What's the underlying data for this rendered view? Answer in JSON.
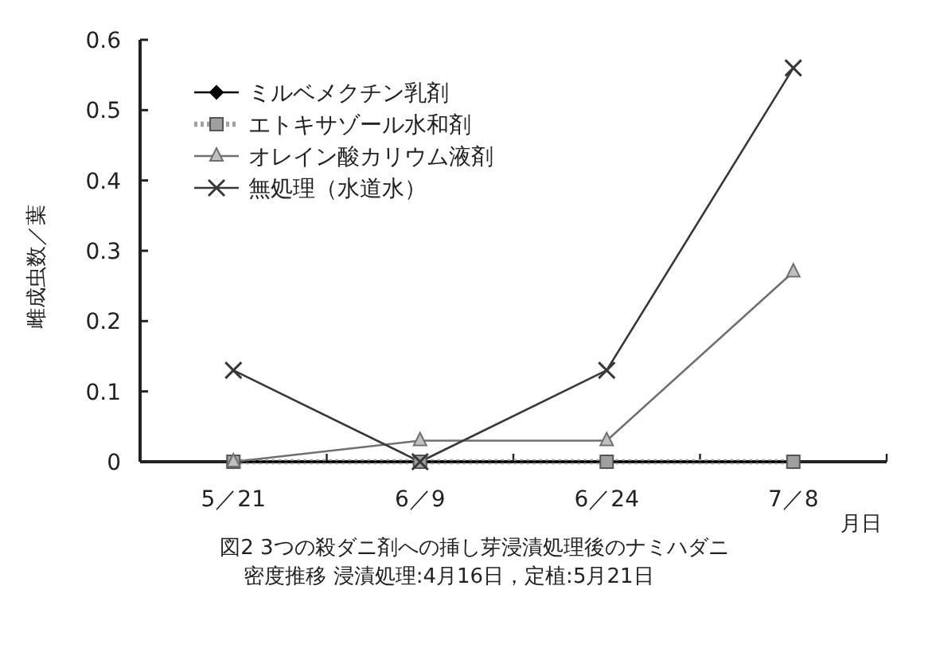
{
  "chart_data": {
    "type": "line",
    "title": "図2 3つの殺ダニ剤への挿し芽浸漬処理後のナミハダニ",
    "subtitle": "密度推移 浸漬処理:4月16日，定植:5月21日",
    "xlabel": "月日",
    "ylabel": "雌成虫数／葉",
    "categories": [
      "5／21",
      "6／9",
      "6／24",
      "7／8"
    ],
    "series": [
      {
        "name": "ミルベメクチン乳剤",
        "color": "#000000",
        "values": [
          0,
          0,
          0,
          0
        ],
        "marker": "diamond",
        "line_style": "solid"
      },
      {
        "name": "エトキサゾール水和剤",
        "color": "#a0a0a0",
        "values": [
          0,
          0,
          0,
          0
        ],
        "marker": "square",
        "line_style": "dotted"
      },
      {
        "name": "オレイン酸カリウム液剤",
        "color": "#707070",
        "values": [
          0,
          0.03,
          0.03,
          0.27
        ],
        "marker": "triangle",
        "line_style": "solid"
      },
      {
        "name": "無処理（水道水）",
        "color": "#383838",
        "values": [
          0.13,
          0,
          0.13,
          0.56
        ],
        "marker": "cross",
        "line_style": "solid"
      }
    ],
    "ylim": [
      0,
      0.6
    ],
    "yticks": [
      0,
      0.1,
      0.2,
      0.3,
      0.4,
      0.5,
      0.6
    ],
    "legend": "top left"
  }
}
